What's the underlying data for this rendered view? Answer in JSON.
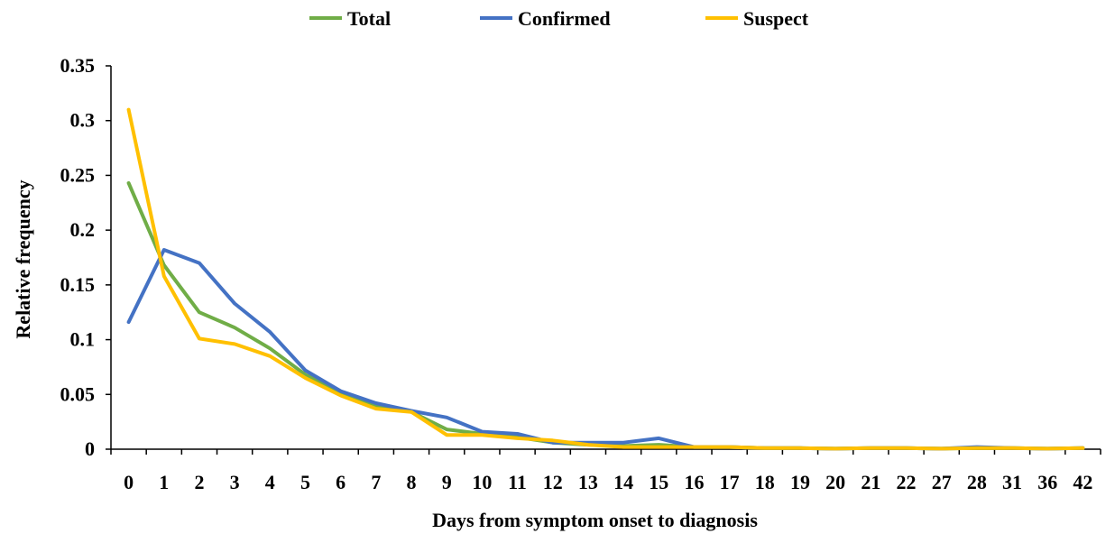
{
  "chart_data": {
    "type": "line",
    "title": "",
    "xlabel": "Days from symptom onset to diagnosis",
    "ylabel": "Relative frequency",
    "ylim": [
      0,
      0.35
    ],
    "yticks": [
      "0",
      "0.05",
      "0.1",
      "0.15",
      "0.2",
      "0.25",
      "0.3",
      "0.35"
    ],
    "grid": false,
    "legend_position": "top",
    "categories": [
      "0",
      "1",
      "2",
      "3",
      "4",
      "5",
      "6",
      "7",
      "8",
      "9",
      "10",
      "11",
      "12",
      "13",
      "14",
      "15",
      "16",
      "17",
      "18",
      "19",
      "20",
      "21",
      "22",
      "27",
      "28",
      "31",
      "36",
      "42"
    ],
    "series": [
      {
        "name": "Total",
        "color": "#70ad47",
        "values": [
          0.243,
          0.168,
          0.125,
          0.111,
          0.092,
          0.068,
          0.052,
          0.04,
          0.034,
          0.018,
          0.014,
          0.011,
          0.006,
          0.004,
          0.003,
          0.004,
          0.002,
          0.002,
          0.001,
          0.001,
          0.0005,
          0.001,
          0.001,
          0.0005,
          0.001,
          0.001,
          0.0005,
          0.001
        ]
      },
      {
        "name": "Confirmed",
        "color": "#4472c4",
        "values": [
          0.116,
          0.182,
          0.17,
          0.133,
          0.107,
          0.072,
          0.053,
          0.042,
          0.035,
          0.029,
          0.016,
          0.014,
          0.006,
          0.006,
          0.006,
          0.01,
          0.002,
          0.002,
          0.001,
          0.001,
          0.0005,
          0.001,
          0.001,
          0.0005,
          0.002,
          0.001,
          0.0005,
          0.001
        ]
      },
      {
        "name": "Suspect",
        "color": "#ffc000",
        "values": [
          0.31,
          0.158,
          0.101,
          0.096,
          0.085,
          0.065,
          0.049,
          0.037,
          0.034,
          0.013,
          0.013,
          0.01,
          0.008,
          0.004,
          0.002,
          0.002,
          0.002,
          0.002,
          0.001,
          0.001,
          0.0005,
          0.001,
          0.001,
          0.0005,
          0.001,
          0.001,
          0.0005,
          0.001
        ]
      }
    ]
  }
}
